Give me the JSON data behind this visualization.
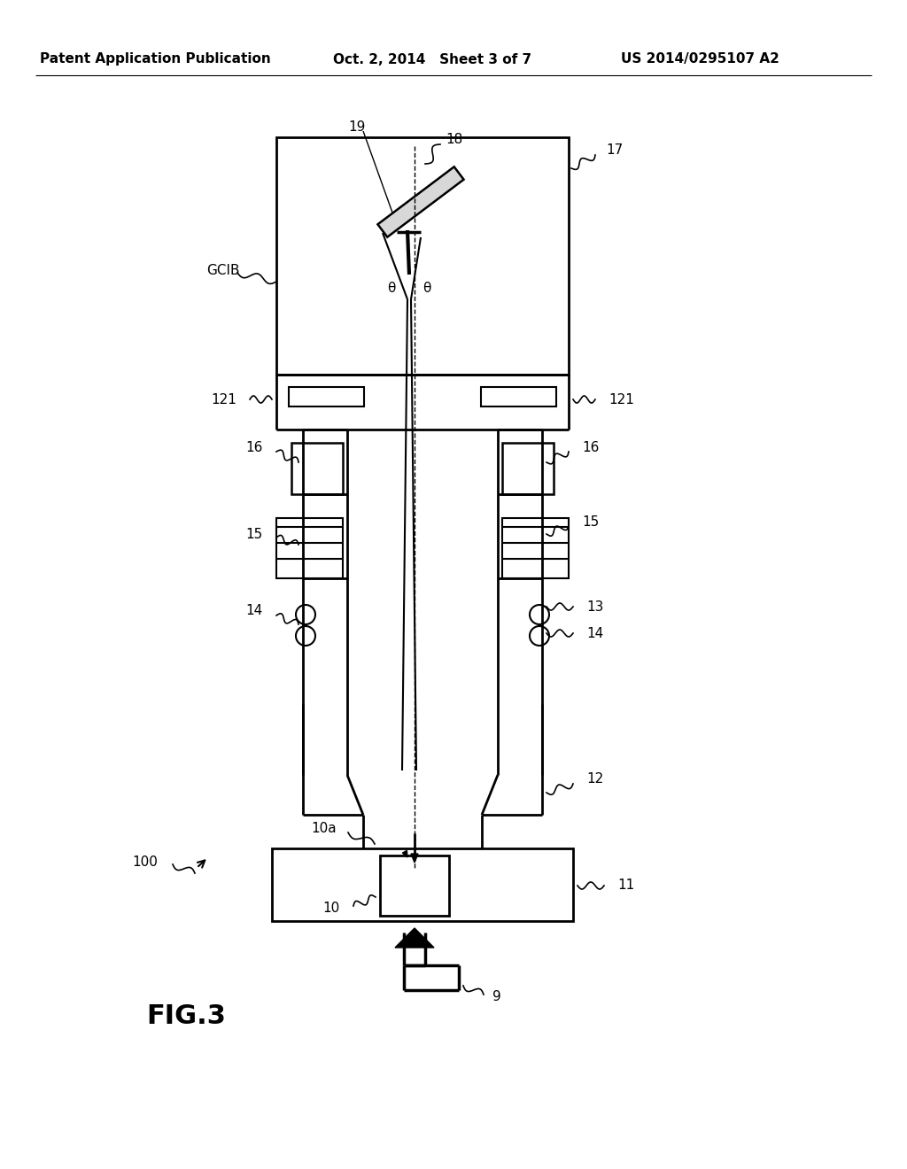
{
  "bg_color": "#ffffff",
  "header_left": "Patent Application Publication",
  "header_mid": "Oct. 2, 2014   Sheet 3 of 7",
  "header_right": "US 2014/0295107 A2",
  "fig_label": "FIG.3"
}
